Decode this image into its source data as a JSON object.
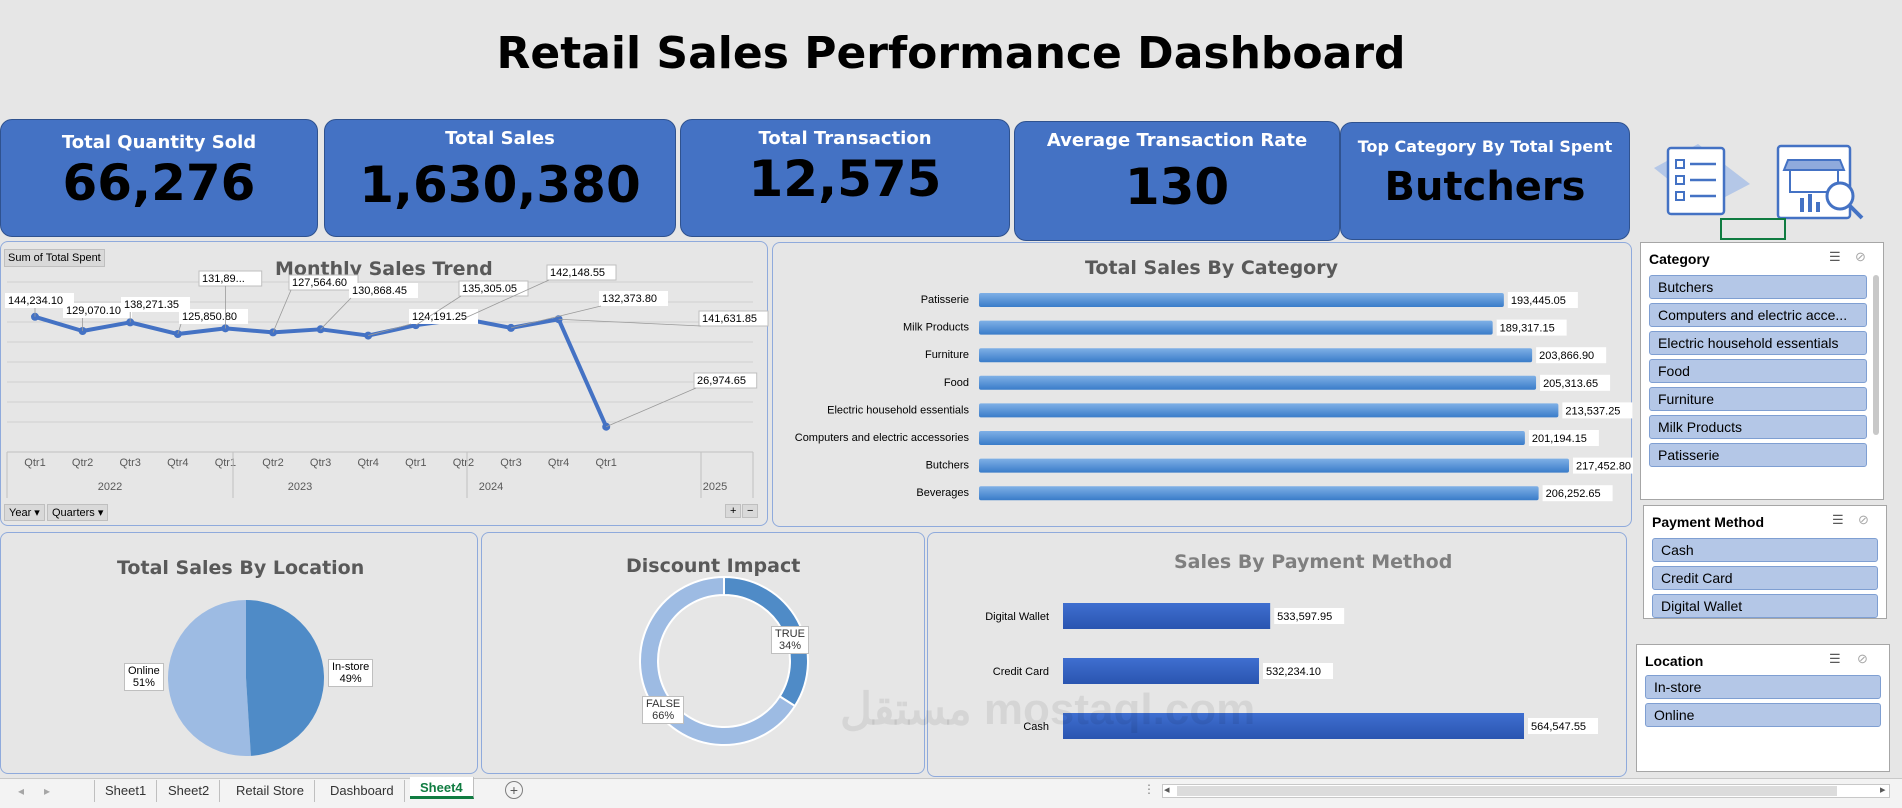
{
  "title": "Retail Sales Performance Dashboard",
  "kpis": [
    {
      "label": "Total Quantity Sold",
      "value": "66,276"
    },
    {
      "label": "Total Sales",
      "value": "1,630,380"
    },
    {
      "label": "Total Transaction",
      "value": "12,575"
    },
    {
      "label": "Average Transaction Rate",
      "value": "130"
    },
    {
      "label": "Top Category By Total Spent",
      "value": "Butchers"
    }
  ],
  "trend": {
    "title": "Monthly Sales Trend",
    "field_button": "Sum of Total Spent",
    "year_button": "Year",
    "quarters_button": "Quarters",
    "expand": "+",
    "collapse": "−",
    "quarters": [
      "Qtr1",
      "Qtr2",
      "Qtr3",
      "Qtr4",
      "Qtr1",
      "Qtr2",
      "Qtr3",
      "Qtr4",
      "Qtr1",
      "Qtr2",
      "Qtr3",
      "Qtr4",
      "Qtr1"
    ],
    "years": [
      "2022",
      "2023",
      "2024",
      "2025"
    ],
    "labels": [
      "144,234.10",
      "129,070.10",
      "138,271.35",
      "125,850.80",
      "131,89...",
      "127,564.60",
      "130,868.45",
      "124,191.25",
      "135,305.05",
      "142,148.55",
      "132,373.80",
      "141,631.85",
      "26,974.65"
    ]
  },
  "category_chart": {
    "title": "Total Sales By Category",
    "rows": [
      {
        "name": "Patisserie",
        "label": "193,445.05"
      },
      {
        "name": "Milk Products",
        "label": "189,317.15"
      },
      {
        "name": "Furniture",
        "label": "203,866.90"
      },
      {
        "name": "Food",
        "label": "205,313.65"
      },
      {
        "name": "Electric household essentials",
        "label": "213,537.25"
      },
      {
        "name": "Computers and electric accessories",
        "label": "201,194.15"
      },
      {
        "name": "Butchers",
        "label": "217,452.80"
      },
      {
        "name": "Beverages",
        "label": "206,252.65"
      }
    ]
  },
  "location_chart": {
    "title": "Total Sales By Location",
    "online_label": "Online",
    "online_pct": "51%",
    "instore_label": "In-store",
    "instore_pct": "49%"
  },
  "discount_chart": {
    "title": "Discount Impact",
    "true_label": "TRUE",
    "true_pct": "34%",
    "false_label": "FALSE",
    "false_pct": "66%"
  },
  "payment_chart": {
    "title": "Sales By Payment Method",
    "rows": [
      {
        "name": "Digital Wallet",
        "label": "533,597.95"
      },
      {
        "name": "Credit Card",
        "label": "532,234.10"
      },
      {
        "name": "Cash",
        "label": "564,547.55"
      }
    ]
  },
  "slicers": {
    "category": {
      "title": "Category",
      "items": [
        "Butchers",
        "Computers and electric acce...",
        "Electric household essentials",
        "Food",
        "Furniture",
        "Milk Products",
        "Patisserie"
      ]
    },
    "payment": {
      "title": "Payment Method",
      "items": [
        "Cash",
        "Credit Card",
        "Digital Wallet"
      ]
    },
    "location": {
      "title": "Location",
      "items": [
        "In-store",
        "Online"
      ]
    }
  },
  "tabs": [
    "Sheet1",
    "Sheet2",
    "Retail Store",
    "Dashboard",
    "Sheet4"
  ],
  "active_tab": "Sheet4",
  "watermark": "مستقل mostaql.com",
  "chart_data": [
    {
      "type": "line",
      "title": "Monthly Sales Trend",
      "categories": [
        "2022 Qtr1",
        "2022 Qtr2",
        "2022 Qtr3",
        "2022 Qtr4",
        "2023 Qtr1",
        "2023 Qtr2",
        "2023 Qtr3",
        "2023 Qtr4",
        "2024 Qtr1",
        "2024 Qtr2",
        "2024 Qtr3",
        "2024 Qtr4",
        "2025 Qtr1"
      ],
      "values": [
        144234.1,
        129070.1,
        138271.35,
        125850.8,
        131890,
        127564.6,
        130868.45,
        124191.25,
        135305.05,
        142148.55,
        132373.8,
        141631.85,
        26974.65
      ],
      "ylim": [
        0,
        160000
      ]
    },
    {
      "type": "bar",
      "title": "Total Sales By Category",
      "categories": [
        "Patisserie",
        "Milk Products",
        "Furniture",
        "Food",
        "Electric household essentials",
        "Computers and electric accessories",
        "Butchers",
        "Beverages"
      ],
      "values": [
        193445.05,
        189317.15,
        203866.9,
        205313.65,
        213537.25,
        201194.15,
        217452.8,
        206252.65
      ]
    },
    {
      "type": "pie",
      "title": "Total Sales By Location",
      "categories": [
        "Online",
        "In-store"
      ],
      "values": [
        51,
        49
      ]
    },
    {
      "type": "pie",
      "title": "Discount Impact",
      "categories": [
        "TRUE",
        "FALSE"
      ],
      "values": [
        34,
        66
      ]
    },
    {
      "type": "bar",
      "title": "Sales By Payment Method",
      "categories": [
        "Digital Wallet",
        "Credit Card",
        "Cash"
      ],
      "values": [
        533597.95,
        532234.1,
        564547.55
      ]
    }
  ]
}
